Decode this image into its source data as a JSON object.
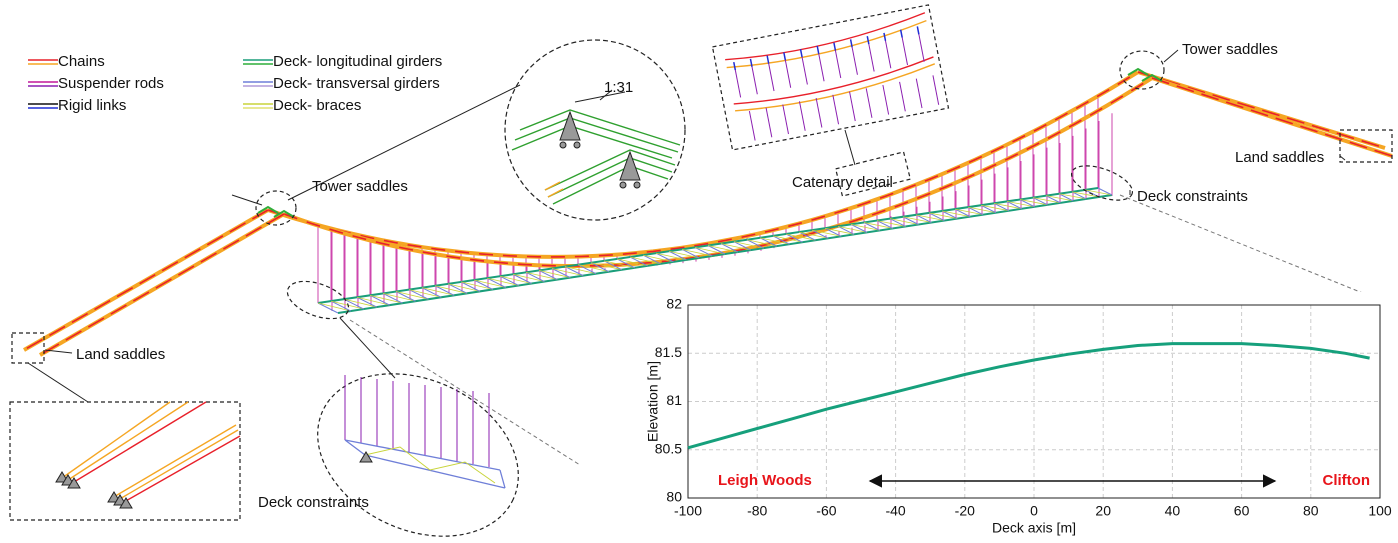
{
  "legend": [
    {
      "label": "Chains",
      "colors": [
        "#e8202a",
        "#f5a623"
      ]
    },
    {
      "label": "Suspender rods",
      "colors": [
        "#c2189a",
        "#8b1fb0"
      ]
    },
    {
      "label": "Rigid links",
      "colors": [
        "#111111",
        "#1f2fd6"
      ]
    },
    {
      "label": "Deck- longitudinal girders",
      "colors": [
        "#1a9e7a",
        "#2fae3a"
      ]
    },
    {
      "label": "Deck- transversal girders",
      "colors": [
        "#6f7fd8",
        "#b09ad8"
      ]
    },
    {
      "label": "Deck- braces",
      "colors": [
        "#c8d43a",
        "#e0e070"
      ]
    }
  ],
  "annotations": {
    "tower_saddles_left": "Tower saddles",
    "tower_saddles_right": "Tower saddles",
    "land_saddles_left": "Land saddles",
    "land_saddles_right": "Land saddles",
    "catenary_detail": "Catenary detail",
    "deck_constraints_right": "Deck constraints",
    "deck_constraints_left": "Deck constraints",
    "slope": "1:31"
  },
  "chart_data": {
    "type": "line",
    "xlabel": "Deck axis [m]",
    "ylabel": "Elevation [m]",
    "x": [
      -100,
      -90,
      -80,
      -70,
      -60,
      -50,
      -40,
      -30,
      -20,
      -10,
      0,
      10,
      20,
      30,
      40,
      50,
      60,
      70,
      80,
      90,
      97
    ],
    "series": [
      {
        "color": "#16a07c",
        "values": [
          80.52,
          80.62,
          80.72,
          80.82,
          80.92,
          81.01,
          81.1,
          81.19,
          81.28,
          81.36,
          81.43,
          81.49,
          81.54,
          81.58,
          81.6,
          81.6,
          81.6,
          81.58,
          81.55,
          81.5,
          81.45
        ]
      }
    ],
    "xlim": [
      -100,
      100
    ],
    "ylim": [
      80,
      82
    ],
    "xticks": [
      -100,
      -80,
      -60,
      -40,
      -20,
      0,
      20,
      40,
      60,
      80,
      100
    ],
    "yticks": [
      80,
      80.5,
      81,
      81.5,
      82
    ],
    "grid": true,
    "annotations": {
      "left": "Leigh Woods",
      "right": "Clifton"
    }
  }
}
